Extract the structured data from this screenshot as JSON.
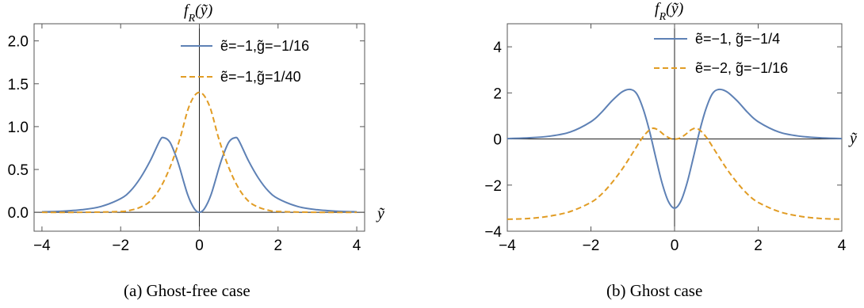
{
  "captions": [
    "(a) Ghost-free case",
    "(b) Ghost case"
  ],
  "chart_data": [
    {
      "type": "line",
      "title": "",
      "ylabel": "f_R(ỹ)",
      "xlabel": "ỹ",
      "xlim": [
        -4.2,
        4.2
      ],
      "ylim": [
        -0.22,
        2.2
      ],
      "xticks": [
        -4,
        -2,
        0,
        2,
        4
      ],
      "yticks": [
        0.0,
        0.5,
        1.0,
        1.5,
        2.0
      ],
      "xtick_labels": [
        "−4",
        "−2",
        "0",
        "2",
        "4"
      ],
      "ytick_labels": [
        "0.0",
        "0.5",
        "1.0",
        "1.5",
        "2.0"
      ],
      "legend_position": "top-right",
      "series": [
        {
          "name": "ẽ=−1,g̃=−1/16",
          "color": "#5e81b5",
          "dash": "solid",
          "x": [
            -4,
            -3.5,
            -3,
            -2.5,
            -2,
            -1.75,
            -1.5,
            -1.25,
            -1,
            -0.9,
            -0.75,
            -0.6,
            -0.5,
            -0.4,
            -0.3,
            -0.2,
            -0.1,
            0,
            0.1,
            0.2,
            0.3,
            0.4,
            0.5,
            0.6,
            0.75,
            0.9,
            1,
            1.25,
            1.5,
            1.75,
            2,
            2.5,
            3,
            3.5,
            4
          ],
          "y": [
            0.006,
            0.013,
            0.03,
            0.068,
            0.16,
            0.25,
            0.4,
            0.6,
            0.84,
            0.87,
            0.82,
            0.66,
            0.52,
            0.36,
            0.21,
            0.1,
            0.025,
            0.0,
            0.025,
            0.1,
            0.21,
            0.36,
            0.52,
            0.66,
            0.82,
            0.87,
            0.84,
            0.6,
            0.4,
            0.25,
            0.16,
            0.068,
            0.03,
            0.013,
            0.006
          ]
        },
        {
          "name": "ẽ=−1,g̃=1/40",
          "color": "#e19c24",
          "dash": "dashed",
          "x": [
            -4,
            -3,
            -2,
            -1.75,
            -1.5,
            -1.25,
            -1,
            -0.75,
            -0.5,
            -0.25,
            0,
            0.25,
            0.5,
            0.75,
            1,
            1.25,
            1.5,
            1.75,
            2,
            3,
            4
          ],
          "y": [
            0.0,
            0.0,
            0.01,
            0.025,
            0.06,
            0.13,
            0.28,
            0.52,
            0.85,
            1.25,
            1.4,
            1.25,
            0.85,
            0.52,
            0.28,
            0.13,
            0.06,
            0.025,
            0.01,
            0.0,
            0.0
          ]
        }
      ]
    },
    {
      "type": "line",
      "title": "",
      "ylabel": "f_R(ỹ)",
      "xlabel": "ỹ",
      "xlim": [
        -4,
        4
      ],
      "ylim": [
        -4,
        5
      ],
      "xticks": [
        -4,
        -2,
        0,
        2,
        4
      ],
      "yticks": [
        -4,
        -2,
        0,
        2,
        4
      ],
      "xtick_labels": [
        "−4",
        "−2",
        "0",
        "2",
        "4"
      ],
      "ytick_labels": [
        "−4",
        "−2",
        "0",
        "2",
        "4"
      ],
      "legend_position": "top-right",
      "series": [
        {
          "name": "ẽ=−1, g̃=−1/4",
          "color": "#5e81b5",
          "dash": "solid",
          "x": [
            -4,
            -3.5,
            -3,
            -2.5,
            -2,
            -1.75,
            -1.5,
            -1.25,
            -1.05,
            -0.9,
            -0.75,
            -0.6,
            -0.45,
            -0.3,
            -0.15,
            0,
            0.15,
            0.3,
            0.45,
            0.6,
            0.75,
            0.9,
            1.05,
            1.25,
            1.5,
            1.75,
            2,
            2.5,
            3,
            3.5,
            4
          ],
          "y": [
            0.02,
            0.05,
            0.12,
            0.3,
            0.75,
            1.15,
            1.65,
            2.05,
            2.15,
            1.95,
            1.3,
            0.35,
            -0.8,
            -1.9,
            -2.7,
            -3.0,
            -2.7,
            -1.9,
            -0.8,
            0.35,
            1.3,
            1.95,
            2.15,
            2.05,
            1.65,
            1.15,
            0.75,
            0.3,
            0.12,
            0.05,
            0.02
          ]
        },
        {
          "name": "ẽ=−2, g̃=−1/16",
          "color": "#e19c24",
          "dash": "dashed",
          "x": [
            -4,
            -3.5,
            -3,
            -2.5,
            -2,
            -1.75,
            -1.5,
            -1.25,
            -1,
            -0.75,
            -0.55,
            -0.4,
            -0.25,
            -0.1,
            0,
            0.1,
            0.25,
            0.4,
            0.55,
            0.75,
            1,
            1.25,
            1.5,
            1.75,
            2,
            2.5,
            3,
            3.5,
            4
          ],
          "y": [
            -3.48,
            -3.45,
            -3.35,
            -3.15,
            -2.75,
            -2.4,
            -1.9,
            -1.3,
            -0.6,
            0.1,
            0.45,
            0.4,
            0.18,
            0.02,
            0.0,
            0.02,
            0.18,
            0.4,
            0.45,
            0.1,
            -0.6,
            -1.3,
            -1.9,
            -2.4,
            -2.75,
            -3.15,
            -3.35,
            -3.45,
            -3.48
          ]
        }
      ]
    }
  ]
}
